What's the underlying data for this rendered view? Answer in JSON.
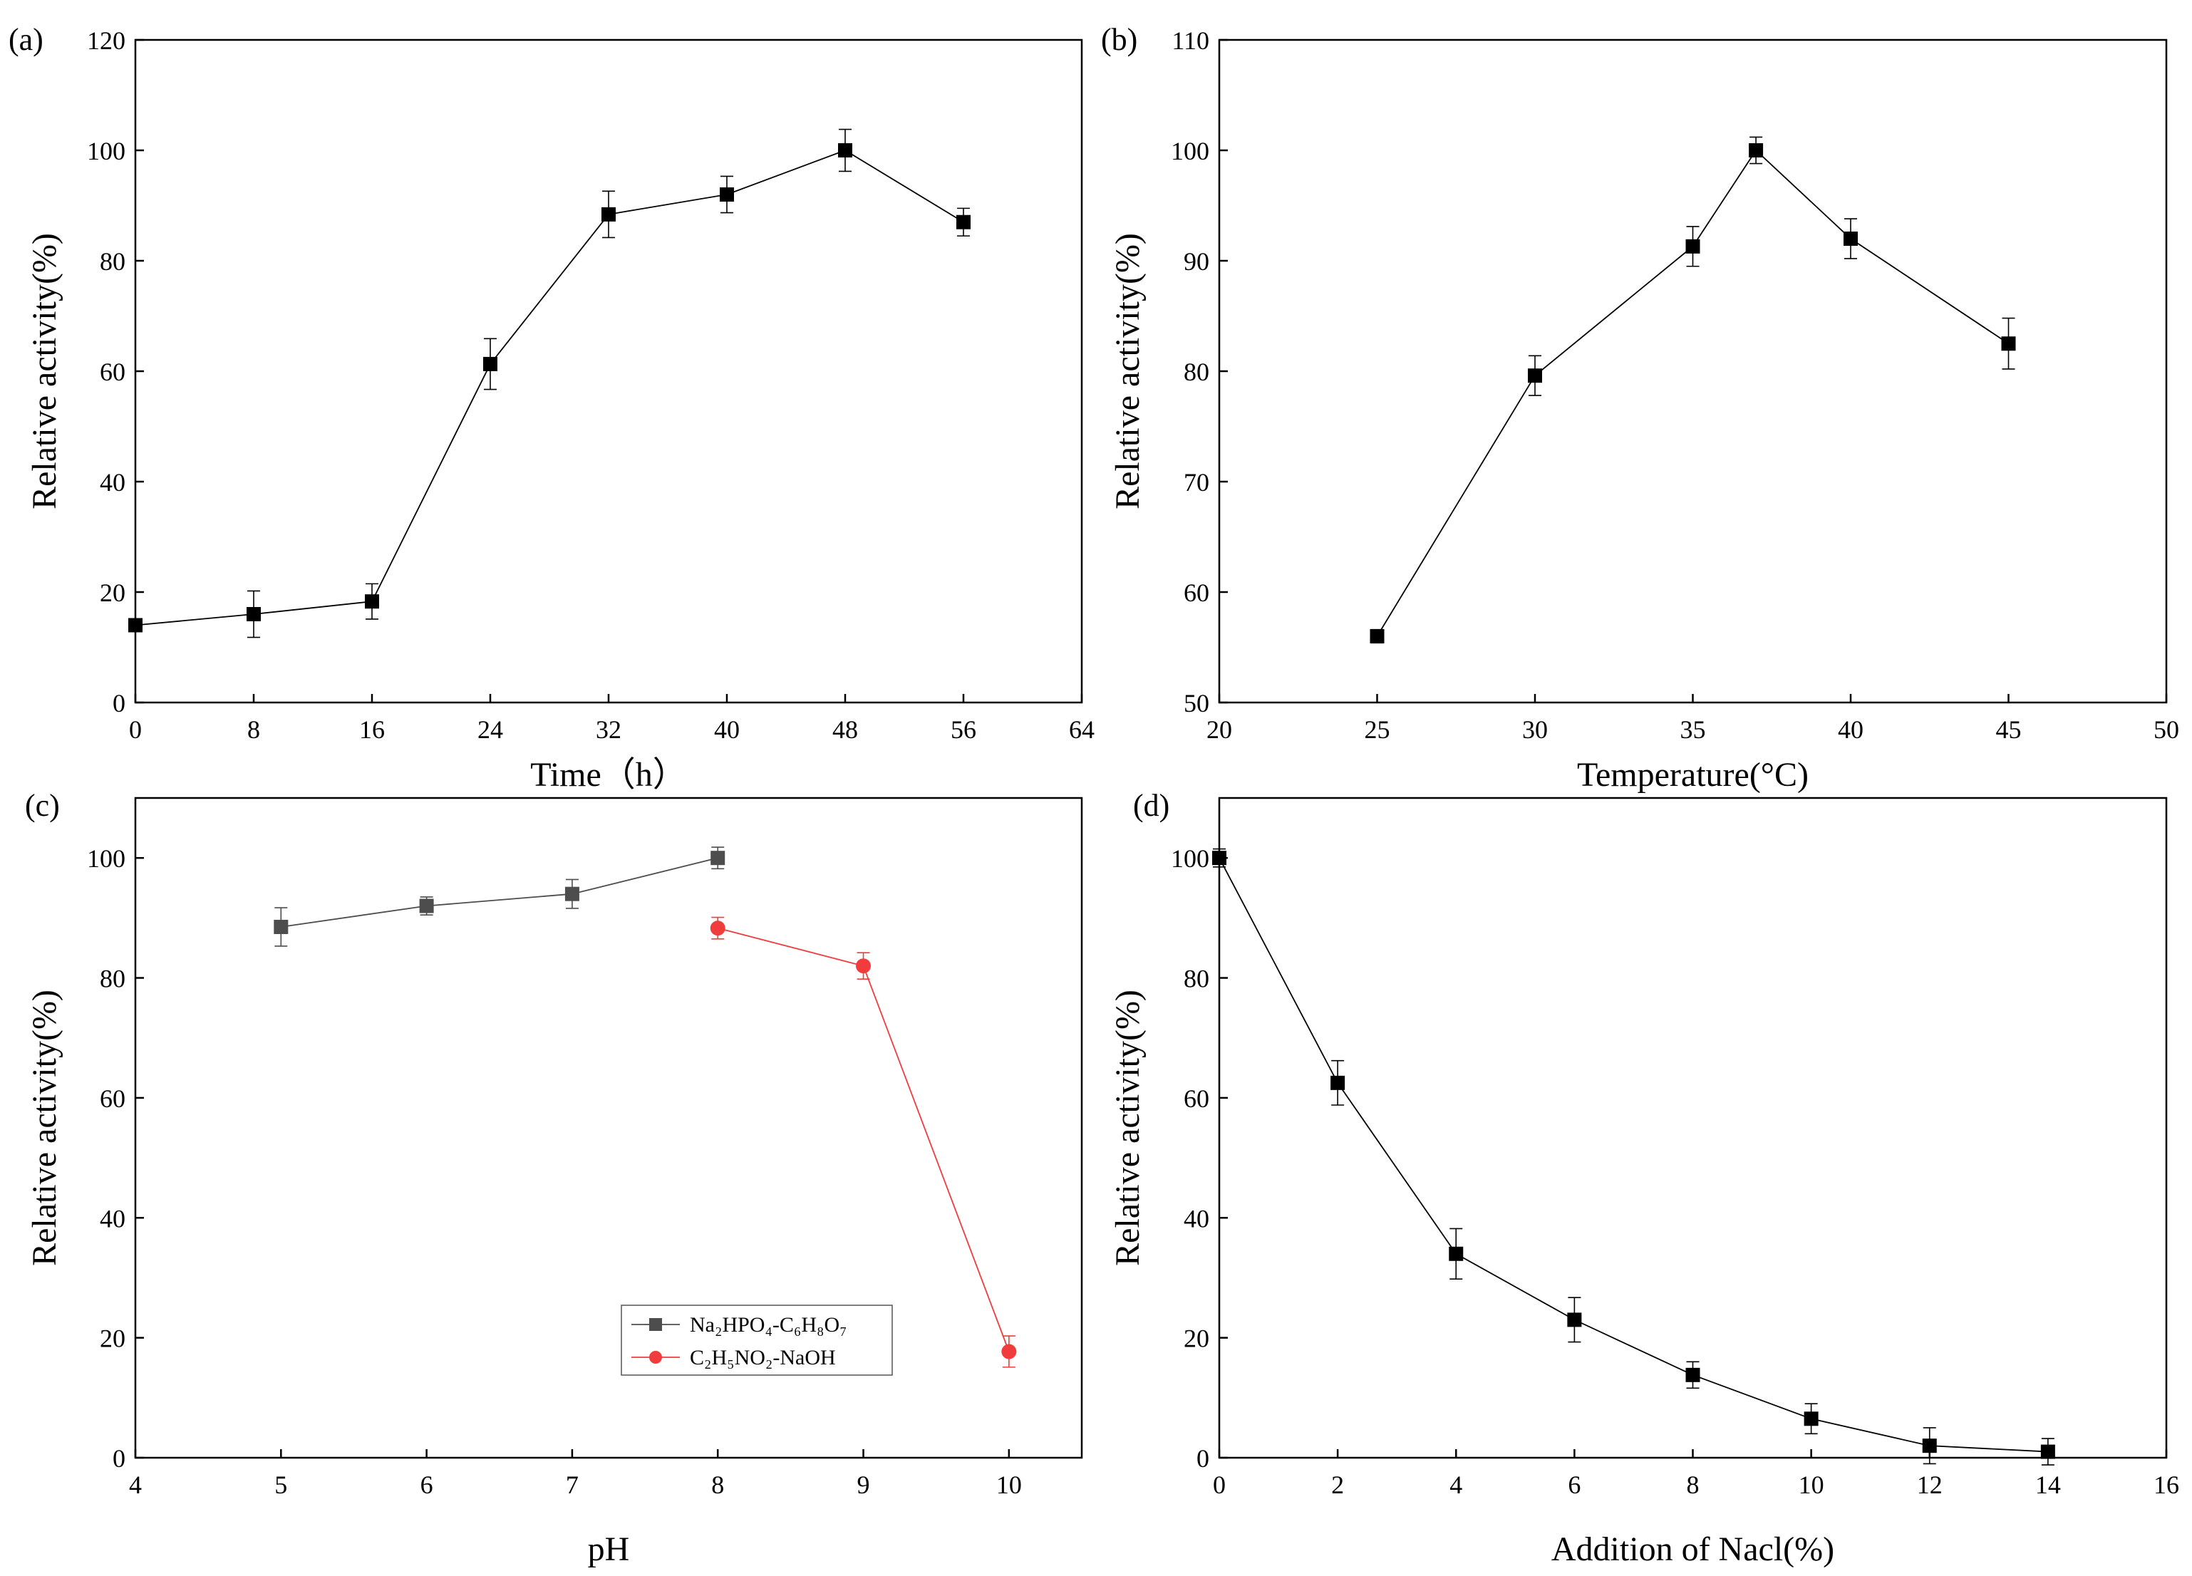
{
  "chart_data": [
    {
      "panel": "(a)",
      "type": "line",
      "xlabel": "Time（h）",
      "ylabel": "Relative activity(%)",
      "xlim": [
        0,
        64
      ],
      "ylim": [
        0,
        120
      ],
      "xticks": [
        0,
        8,
        16,
        24,
        32,
        40,
        48,
        56,
        64
      ],
      "yticks": [
        0,
        20,
        40,
        60,
        80,
        100,
        120
      ],
      "series": [
        {
          "name": "",
          "color": "#000000",
          "marker": "square",
          "x": [
            0,
            8,
            16,
            24,
            32,
            40,
            48,
            56
          ],
          "y": [
            14,
            16,
            18.3,
            61.3,
            88.4,
            92,
            100,
            87
          ],
          "err": [
            1,
            4.2,
            3.2,
            4.6,
            4.2,
            3.3,
            3.8,
            2.5
          ]
        }
      ],
      "legend": null
    },
    {
      "panel": "(b)",
      "type": "line",
      "xlabel": "Temperature(°C)",
      "ylabel": "Relative activity(%)",
      "xlim": [
        20,
        50
      ],
      "ylim": [
        50,
        110
      ],
      "xticks": [
        20,
        25,
        30,
        35,
        40,
        45,
        50
      ],
      "yticks": [
        50,
        60,
        70,
        80,
        90,
        100,
        110
      ],
      "series": [
        {
          "name": "",
          "color": "#000000",
          "marker": "square",
          "x": [
            25,
            30,
            35,
            37,
            40,
            45
          ],
          "y": [
            56,
            79.6,
            91.3,
            100,
            92,
            82.5
          ],
          "err": [
            0.6,
            1.8,
            1.8,
            1.2,
            1.8,
            2.3
          ]
        }
      ],
      "legend": null
    },
    {
      "panel": "(c)",
      "type": "line",
      "xlabel": "pH",
      "ylabel": "Relative activity(%)",
      "xlim": [
        4,
        10.5
      ],
      "ylim": [
        0,
        110
      ],
      "xticks": [
        4,
        5,
        6,
        7,
        8,
        9,
        10
      ],
      "yticks": [
        0,
        20,
        40,
        60,
        80,
        100
      ],
      "series": [
        {
          "name": "Na₂HPO₄-C₆H₈O₇",
          "color": "#4d4d4d",
          "marker": "square",
          "x": [
            5,
            6,
            7,
            8
          ],
          "y": [
            88.5,
            92,
            94,
            100
          ],
          "err": [
            3.2,
            1.5,
            2.4,
            1.8
          ]
        },
        {
          "name": "C₂H₅NO₂-NaOH",
          "color": "#f03c3c",
          "marker": "circle",
          "x": [
            8,
            9,
            10
          ],
          "y": [
            88.3,
            82,
            17.7
          ],
          "err": [
            1.8,
            2.2,
            2.6
          ]
        }
      ],
      "legend": "lower-center"
    },
    {
      "panel": "(d)",
      "type": "line",
      "xlabel": "Addition of Nacl(%)",
      "ylabel": "Relative activity(%)",
      "xlim": [
        0,
        16
      ],
      "ylim": [
        0,
        110
      ],
      "xticks": [
        0,
        2,
        4,
        6,
        8,
        10,
        12,
        14,
        16
      ],
      "yticks": [
        0,
        20,
        40,
        60,
        80,
        100
      ],
      "series": [
        {
          "name": "",
          "color": "#000000",
          "marker": "square",
          "x": [
            0,
            2,
            4,
            6,
            8,
            10,
            12,
            14
          ],
          "y": [
            100,
            62.5,
            34,
            23,
            13.8,
            6.5,
            2,
            1
          ],
          "err": [
            1.5,
            3.7,
            4.2,
            3.7,
            2.2,
            2.5,
            3,
            2.2
          ]
        }
      ],
      "legend": null
    }
  ]
}
